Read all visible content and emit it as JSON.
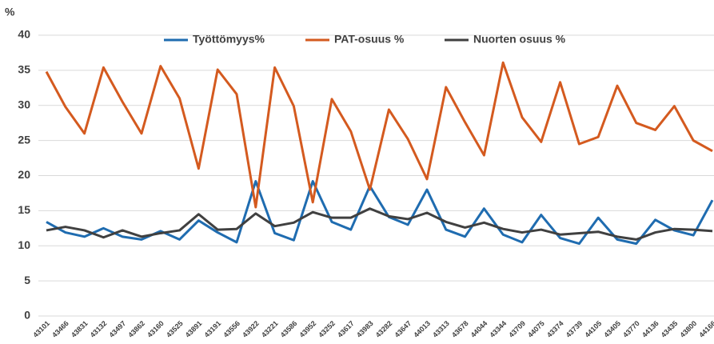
{
  "chart_data": {
    "type": "line",
    "y_label": "%",
    "categories": [
      "43101",
      "43466",
      "43831",
      "43132",
      "43497",
      "43862",
      "43160",
      "43525",
      "43891",
      "43191",
      "43556",
      "43922",
      "43221",
      "43586",
      "43952",
      "43252",
      "43617",
      "43983",
      "43282",
      "43647",
      "44013",
      "43313",
      "43678",
      "44044",
      "43344",
      "43709",
      "44075",
      "43374",
      "43739",
      "44105",
      "43405",
      "43770",
      "44136",
      "43435",
      "43800",
      "44166"
    ],
    "series": [
      {
        "name": "Työttömyys%",
        "color": "#1f6cb0",
        "values": [
          13.4,
          11.9,
          11.3,
          12.5,
          11.3,
          10.9,
          12.1,
          10.9,
          13.6,
          11.9,
          10.5,
          19.2,
          11.8,
          10.8,
          19.2,
          13.4,
          12.3,
          18.5,
          14.1,
          13.0,
          18.0,
          12.3,
          11.3,
          15.3,
          11.6,
          10.5,
          14.4,
          11.1,
          10.3,
          14.0,
          10.9,
          10.3,
          13.7,
          12.2,
          11.5,
          16.5
        ]
      },
      {
        "name": "PAT-osuus %",
        "color": "#d45a1f",
        "values": [
          34.8,
          29.8,
          26.0,
          35.4,
          30.5,
          26.0,
          35.6,
          31.0,
          21.0,
          35.1,
          31.6,
          15.5,
          35.4,
          29.9,
          16.2,
          30.9,
          26.3,
          18.0,
          29.4,
          25.2,
          19.5,
          32.6,
          27.6,
          22.9,
          36.1,
          28.3,
          24.8,
          33.3,
          24.5,
          25.5,
          32.8,
          27.5,
          26.5,
          29.9,
          25.0,
          23.5
        ]
      },
      {
        "name": "Nuorten osuus %",
        "color": "#404040",
        "values": [
          12.2,
          12.7,
          12.2,
          11.2,
          12.2,
          11.3,
          11.8,
          12.2,
          14.5,
          12.3,
          12.4,
          14.6,
          12.8,
          13.3,
          14.8,
          14.0,
          14.0,
          15.3,
          14.2,
          13.8,
          14.7,
          13.4,
          12.6,
          13.3,
          12.4,
          11.9,
          12.3,
          11.6,
          11.8,
          12.0,
          11.3,
          10.9,
          11.9,
          12.4,
          12.3,
          12.1
        ]
      }
    ],
    "ylim": [
      0,
      40
    ],
    "yticks": [
      0,
      5,
      10,
      15,
      20,
      25,
      30,
      35,
      40
    ],
    "grid": true,
    "legend": "top"
  }
}
